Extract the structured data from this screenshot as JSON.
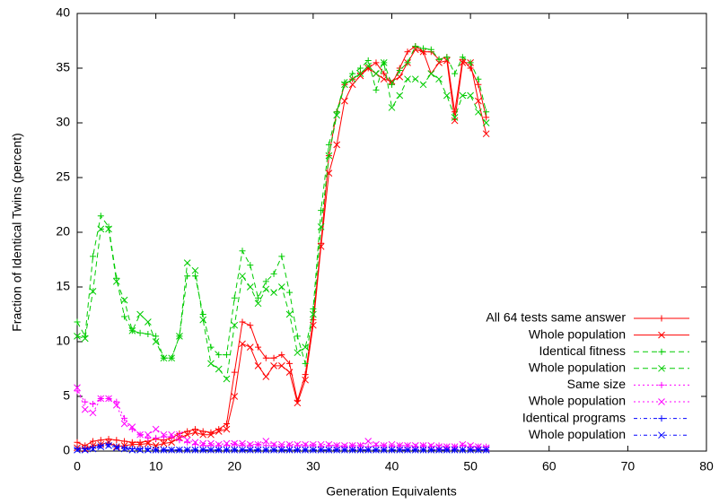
{
  "chart_data": {
    "type": "line",
    "xlabel": "Generation Equivalents",
    "ylabel": "Fraction of Identical Twins (percent)",
    "xlim": [
      0,
      80
    ],
    "ylim": [
      0,
      40
    ],
    "xticks": [
      0,
      10,
      20,
      30,
      40,
      50,
      60,
      70,
      80
    ],
    "yticks": [
      0,
      5,
      10,
      15,
      20,
      25,
      30,
      35,
      40
    ],
    "legend": "bottom-right",
    "x": [
      0,
      1,
      2,
      3,
      4,
      5,
      6,
      7,
      8,
      9,
      10,
      11,
      12,
      13,
      14,
      15,
      16,
      17,
      18,
      19,
      20,
      21,
      22,
      23,
      24,
      25,
      26,
      27,
      28,
      29,
      30,
      31,
      32,
      33,
      34,
      35,
      36,
      37,
      38,
      39,
      40,
      41,
      42,
      43,
      44,
      45,
      46,
      47,
      48,
      49,
      50,
      51,
      52
    ],
    "series": [
      {
        "name": "All 64 tests same answer",
        "color": "#ff0000",
        "marker": "+",
        "values": [
          0.8,
          0.5,
          0.9,
          1,
          1.1,
          1,
          0.9,
          0.8,
          0.8,
          0.9,
          1.1,
          1,
          1.2,
          1.6,
          1.8,
          2,
          1.8,
          1.7,
          2,
          2.5,
          7.2,
          11.8,
          11.5,
          9.5,
          8.5,
          8.5,
          8.8,
          8,
          4.6,
          7,
          12,
          19,
          27,
          31,
          33.5,
          34,
          34.5,
          35,
          35.5,
          34.5,
          33.5,
          35,
          36.5,
          37,
          36.5,
          36.5,
          35.8,
          36,
          31,
          35.8,
          35,
          33.5,
          30.5
        ]
      },
      {
        "name": "Whole population",
        "color": "#ff0000",
        "marker": "x",
        "values": [
          0.3,
          0.2,
          0.5,
          0.6,
          0.8,
          0.4,
          0.5,
          0.6,
          0.6,
          0.7,
          0.5,
          0.7,
          0.8,
          1.2,
          1.5,
          1.7,
          1.5,
          1.5,
          1.8,
          2,
          5,
          9.8,
          9.5,
          7.8,
          6.8,
          7.8,
          7.8,
          7.2,
          4.4,
          6.5,
          11.5,
          18.7,
          25.4,
          28,
          32,
          33.5,
          34.3,
          35,
          34.5,
          34,
          33.8,
          34.2,
          35.5,
          36.7,
          36.5,
          34.5,
          35.5,
          35.7,
          30.2,
          35.5,
          35.5,
          32,
          29
        ]
      },
      {
        "name": "Identical fitness",
        "color": "#00cc00",
        "marker": "+",
        "values": [
          11.8,
          10.5,
          17.8,
          21.5,
          20.5,
          15.8,
          12.3,
          11,
          10.8,
          10.7,
          10.5,
          8.5,
          8.5,
          10.5,
          16,
          16,
          12.5,
          9.5,
          8.8,
          8.8,
          14,
          18.3,
          17,
          14,
          15.5,
          16.2,
          17.8,
          14.5,
          10.5,
          8,
          13,
          22,
          28,
          31,
          33.7,
          34.5,
          35,
          35.7,
          33,
          35.5,
          33.5,
          34.8,
          35.5,
          37,
          36.8,
          36.7,
          35.8,
          36,
          34.5,
          36,
          35.5,
          34,
          31
        ]
      },
      {
        "name": "Whole population",
        "color": "#00cc00",
        "marker": "x",
        "values": [
          10.5,
          10.3,
          14.6,
          20.3,
          20.3,
          15.5,
          13.8,
          11,
          12.5,
          11.8,
          10,
          8.5,
          8.5,
          10.5,
          17.2,
          16.5,
          12,
          8,
          7.5,
          6.6,
          11.5,
          16,
          15,
          13.5,
          14.8,
          14.5,
          15,
          12.5,
          9,
          9.5,
          12.5,
          20.5,
          27,
          30.7,
          33.5,
          34,
          34.5,
          35.2,
          34.5,
          35.5,
          31.4,
          32.5,
          34,
          34,
          33.5,
          34.5,
          34,
          32.5,
          30.5,
          32.5,
          32.5,
          31,
          30
        ]
      },
      {
        "name": "Same size",
        "color": "#ff00ff",
        "marker": "+",
        "values": [
          5.5,
          4.5,
          4.3,
          4.8,
          4.8,
          4.5,
          3,
          2,
          1.5,
          1.2,
          1.2,
          1.3,
          1.3,
          1,
          0.8,
          0.6,
          0.5,
          0.5,
          0.5,
          0.5,
          0.6,
          0.5,
          0.5,
          0.6,
          0.5,
          0.5,
          0.4,
          0.5,
          0.5,
          0.5,
          0.5,
          0.4,
          0.5,
          0.5,
          0.4,
          0.5,
          0.5,
          0.4,
          0.5,
          0.5,
          0.4,
          0.5,
          0.5,
          0.4,
          0.5,
          0.4,
          0.5,
          0.4,
          0.4,
          0.5,
          0.4,
          0.4,
          0.4
        ]
      },
      {
        "name": "Whole population",
        "color": "#ff00ff",
        "marker": "x",
        "values": [
          5.8,
          3.8,
          3.5,
          4.8,
          4.8,
          4.2,
          2.5,
          2.2,
          1.5,
          1.5,
          2,
          1.5,
          1.5,
          1.5,
          1,
          0.8,
          0.7,
          0.7,
          0.6,
          0.7,
          0.7,
          0.7,
          0.6,
          0.6,
          0.9,
          0.6,
          0.6,
          0.6,
          0.6,
          0.6,
          0.6,
          0.6,
          0.6,
          0.5,
          0.5,
          0.5,
          0.5,
          0.9,
          0.6,
          0.5,
          0.6,
          0.5,
          0.5,
          0.5,
          0.5,
          0.5,
          0.4,
          0.4,
          0.4,
          0.6,
          0.5,
          0.4,
          0.3
        ]
      },
      {
        "name": "Identical programs",
        "color": "#0000ff",
        "marker": "+",
        "values": [
          0.2,
          0.2,
          0.3,
          0.5,
          0.6,
          0.4,
          0.3,
          0.2,
          0.2,
          0.2,
          0.1,
          0.1,
          0.1,
          0.1,
          0.1,
          0.1,
          0.1,
          0.1,
          0.1,
          0.1,
          0.1,
          0.1,
          0.1,
          0.1,
          0.1,
          0.1,
          0.1,
          0.1,
          0.1,
          0.1,
          0.1,
          0.1,
          0.1,
          0.1,
          0.1,
          0.1,
          0.1,
          0.1,
          0.1,
          0.1,
          0.1,
          0.1,
          0.1,
          0.1,
          0.1,
          0.1,
          0.1,
          0.1,
          0.1,
          0.1,
          0.1,
          0.1,
          0.1
        ]
      },
      {
        "name": "Whole population",
        "color": "#0000ff",
        "marker": "x",
        "values": [
          0.1,
          0.1,
          0.2,
          0.4,
          0.5,
          0.3,
          0.2,
          0.1,
          0.1,
          0.1,
          0.1,
          0.1,
          0.1,
          0.1,
          0.1,
          0.1,
          0.1,
          0.1,
          0.1,
          0.1,
          0.1,
          0.1,
          0.1,
          0.1,
          0.1,
          0.1,
          0.1,
          0.1,
          0.1,
          0.1,
          0.1,
          0.1,
          0.1,
          0.1,
          0.1,
          0.1,
          0.1,
          0.1,
          0.1,
          0.1,
          0.1,
          0.1,
          0.1,
          0.1,
          0.1,
          0.1,
          0.1,
          0.1,
          0.1,
          0.1,
          0.1,
          0.1,
          0.1
        ]
      }
    ]
  }
}
